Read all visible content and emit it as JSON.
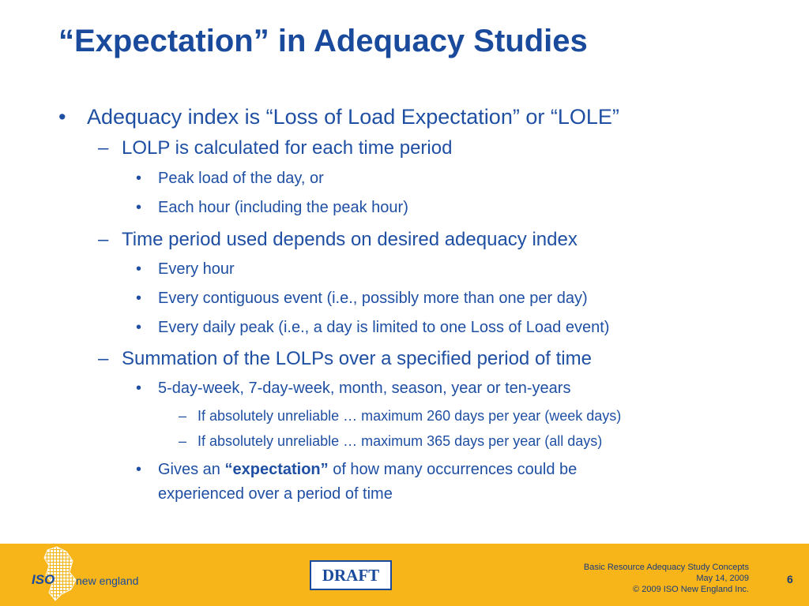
{
  "slide": {
    "title": "“Expectation” in Adequacy Studies",
    "bullets": [
      {
        "level": 1,
        "marker": "•",
        "text": "Adequacy index is “Loss of Load Expectation” or “LOLE”"
      },
      {
        "level": 2,
        "marker": "–",
        "text": "LOLP is calculated for each time period"
      },
      {
        "level": 3,
        "marker": "•",
        "text": "Peak load of the day, or"
      },
      {
        "level": 3,
        "marker": "•",
        "text": "Each hour (including the peak hour)"
      },
      {
        "level": 2,
        "marker": "–",
        "text": "Time period used depends on desired adequacy index"
      },
      {
        "level": 3,
        "marker": "•",
        "text": "Every hour"
      },
      {
        "level": 3,
        "marker": "•",
        "text": "Every contiguous event (i.e., possibly more than one per day)"
      },
      {
        "level": 3,
        "marker": "•",
        "text": "Every daily peak (i.e., a day is limited to one Loss of Load event)"
      },
      {
        "level": 2,
        "marker": "–",
        "text": "Summation of the LOLPs over a specified period of time"
      },
      {
        "level": 3,
        "marker": "•",
        "text": "5-day-week, 7-day-week, month, season, year or ten-years"
      },
      {
        "level": 4,
        "marker": "–",
        "text": "If absolutely unreliable … maximum 260 days per year (week days)"
      },
      {
        "level": 4,
        "marker": "–",
        "text": "If absolutely unreliable … maximum 365 days per year (all days)"
      },
      {
        "level": 3,
        "marker": "•",
        "text_before": "Gives an ",
        "text_bold": "“expectation”",
        "text_after": " of how many occurrences could be",
        "text_line2": "experienced over a period of time"
      }
    ]
  },
  "footer": {
    "logo_iso": "ISO",
    "logo_name": "new england",
    "draft_label": "DRAFT",
    "meta_line1": "Basic Resource Adequacy Study Concepts",
    "meta_line2": "May 14, 2009",
    "meta_line3": "© 2009 ISO New England Inc.",
    "page_number": "6",
    "colors": {
      "footer_bg": "#f7b51a",
      "accent": "#1a4a9c"
    }
  }
}
